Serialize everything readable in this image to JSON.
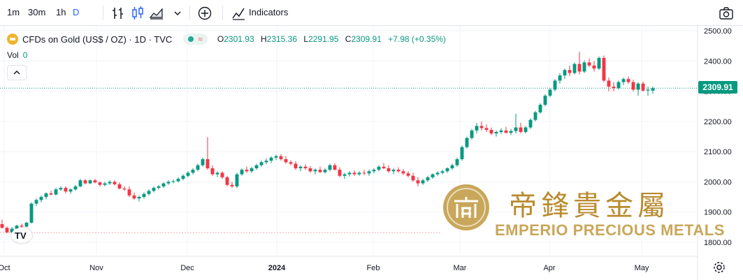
{
  "toolbar": {
    "timeframes": [
      "1m",
      "30m",
      "1h",
      "D"
    ],
    "active_timeframe": "D",
    "indicators_label": "Indicators",
    "icons": [
      "bar-style-icon",
      "candle-style-icon",
      "area-style-icon",
      "chevron-down-icon",
      "add-compare-icon",
      "indicators-icon",
      "camera-icon"
    ]
  },
  "legend": {
    "symbol_title": "CFDs on Gold (US$ / OZ) · 1D · TVC",
    "open_label": "O",
    "open": "2301.93",
    "high_label": "H",
    "high": "2315.36",
    "low_label": "L",
    "low": "2291.95",
    "close_label": "C",
    "close": "2309.91",
    "change": "+7.98 (+0.35%)"
  },
  "volume": {
    "label": "Vol",
    "value": "0"
  },
  "last_price_tag": "2309.91",
  "watermark": {
    "chinese": "帝鋒貴金屬",
    "english": "EMPERIO PRECIOUS METALS"
  },
  "colors": {
    "up": "#089981",
    "down": "#f23645",
    "grid": "#f0f3fa",
    "axis_text": "#131722",
    "watermark": "#c9a75a"
  },
  "chart_data": {
    "type": "candlestick",
    "title": "CFDs on Gold (US$ / OZ) · 1D · TVC",
    "ylim": [
      1760,
      2510
    ],
    "y_ticks": [
      "2500.00",
      "2400.00",
      "2300.00",
      "2200.00",
      "2100.00",
      "2000.00",
      "1900.00",
      "1800.00"
    ],
    "x_ticks": [
      "Oct",
      "Nov",
      "Dec",
      "2024",
      "Feb",
      "Mar",
      "Apr",
      "May"
    ],
    "last_price": 2309.91,
    "reference_line": 1832,
    "candles": [
      [
        1860,
        1875,
        1845,
        1848
      ],
      [
        1848,
        1852,
        1830,
        1833
      ],
      [
        1833,
        1850,
        1823,
        1845
      ],
      [
        1845,
        1858,
        1840,
        1855
      ],
      [
        1855,
        1862,
        1848,
        1852
      ],
      [
        1852,
        1868,
        1850,
        1865
      ],
      [
        1865,
        1932,
        1862,
        1928
      ],
      [
        1928,
        1945,
        1920,
        1940
      ],
      [
        1940,
        1955,
        1932,
        1950
      ],
      [
        1950,
        1965,
        1942,
        1962
      ],
      [
        1962,
        1970,
        1955,
        1958
      ],
      [
        1958,
        1980,
        1955,
        1975
      ],
      [
        1975,
        1985,
        1970,
        1980
      ],
      [
        1980,
        1985,
        1962,
        1968
      ],
      [
        1968,
        1978,
        1960,
        1975
      ],
      [
        1975,
        1990,
        1970,
        1985
      ],
      [
        1985,
        2010,
        1982,
        2005
      ],
      [
        2005,
        2010,
        1992,
        1995
      ],
      [
        1995,
        2008,
        1992,
        2005
      ],
      [
        2005,
        2010,
        1995,
        1998
      ],
      [
        1998,
        2002,
        1985,
        1990
      ],
      [
        1990,
        2000,
        1985,
        1995
      ],
      [
        1995,
        2005,
        1990,
        2000
      ],
      [
        2000,
        2005,
        1988,
        1992
      ],
      [
        1992,
        1998,
        1975,
        1978
      ],
      [
        1978,
        1985,
        1970,
        1975
      ],
      [
        1975,
        1985,
        1950,
        1955
      ],
      [
        1955,
        1965,
        1940,
        1945
      ],
      [
        1945,
        1955,
        1935,
        1950
      ],
      [
        1950,
        1965,
        1945,
        1960
      ],
      [
        1960,
        1975,
        1955,
        1970
      ],
      [
        1970,
        1985,
        1965,
        1980
      ],
      [
        1980,
        1990,
        1975,
        1985
      ],
      [
        1985,
        1998,
        1980,
        1995
      ],
      [
        1995,
        2005,
        1990,
        2000
      ],
      [
        2000,
        2008,
        1995,
        2002
      ],
      [
        2002,
        2015,
        1998,
        2010
      ],
      [
        2010,
        2025,
        2005,
        2020
      ],
      [
        2020,
        2035,
        2015,
        2030
      ],
      [
        2030,
        2045,
        2025,
        2040
      ],
      [
        2040,
        2060,
        2035,
        2055
      ],
      [
        2055,
        2080,
        2050,
        2075
      ],
      [
        2075,
        2148,
        2040,
        2045
      ],
      [
        2045,
        2055,
        2020,
        2025
      ],
      [
        2025,
        2035,
        2015,
        2030
      ],
      [
        2030,
        2035,
        2010,
        2015
      ],
      [
        2015,
        2020,
        1985,
        1990
      ],
      [
        1990,
        2000,
        1980,
        1985
      ],
      [
        1985,
        2030,
        1980,
        2025
      ],
      [
        2025,
        2045,
        2020,
        2040
      ],
      [
        2040,
        2050,
        2030,
        2035
      ],
      [
        2035,
        2050,
        2030,
        2045
      ],
      [
        2045,
        2060,
        2040,
        2055
      ],
      [
        2055,
        2070,
        2050,
        2065
      ],
      [
        2065,
        2078,
        2058,
        2070
      ],
      [
        2070,
        2085,
        2062,
        2080
      ],
      [
        2080,
        2090,
        2072,
        2085
      ],
      [
        2085,
        2092,
        2070,
        2075
      ],
      [
        2075,
        2085,
        2060,
        2065
      ],
      [
        2065,
        2072,
        2055,
        2060
      ],
      [
        2060,
        2068,
        2040,
        2045
      ],
      [
        2045,
        2055,
        2035,
        2050
      ],
      [
        2050,
        2058,
        2040,
        2045
      ],
      [
        2045,
        2052,
        2030,
        2035
      ],
      [
        2035,
        2045,
        2025,
        2040
      ],
      [
        2040,
        2050,
        2030,
        2032
      ],
      [
        2032,
        2045,
        2028,
        2040
      ],
      [
        2040,
        2060,
        2035,
        2055
      ],
      [
        2055,
        2062,
        2038,
        2040
      ],
      [
        2040,
        2048,
        2015,
        2020
      ],
      [
        2020,
        2030,
        2010,
        2025
      ],
      [
        2025,
        2035,
        2018,
        2030
      ],
      [
        2030,
        2038,
        2020,
        2025
      ],
      [
        2025,
        2035,
        2020,
        2030
      ],
      [
        2030,
        2040,
        2022,
        2028
      ],
      [
        2028,
        2040,
        2020,
        2035
      ],
      [
        2035,
        2045,
        2028,
        2040
      ],
      [
        2040,
        2055,
        2035,
        2050
      ],
      [
        2050,
        2062,
        2042,
        2045
      ],
      [
        2045,
        2055,
        2030,
        2035
      ],
      [
        2035,
        2045,
        2025,
        2040
      ],
      [
        2040,
        2048,
        2030,
        2035
      ],
      [
        2035,
        2042,
        2022,
        2028
      ],
      [
        2028,
        2035,
        2015,
        2020
      ],
      [
        2020,
        2030,
        2000,
        2005
      ],
      [
        2005,
        2015,
        1985,
        1995
      ],
      [
        1995,
        2010,
        1990,
        2005
      ],
      [
        2005,
        2020,
        2000,
        2015
      ],
      [
        2015,
        2028,
        2010,
        2025
      ],
      [
        2025,
        2035,
        2020,
        2030
      ],
      [
        2030,
        2040,
        2025,
        2035
      ],
      [
        2035,
        2048,
        2030,
        2045
      ],
      [
        2045,
        2060,
        2040,
        2055
      ],
      [
        2055,
        2080,
        2050,
        2075
      ],
      [
        2075,
        2120,
        2070,
        2115
      ],
      [
        2115,
        2150,
        2110,
        2145
      ],
      [
        2145,
        2175,
        2140,
        2170
      ],
      [
        2170,
        2195,
        2160,
        2185
      ],
      [
        2185,
        2200,
        2170,
        2178
      ],
      [
        2178,
        2190,
        2165,
        2172
      ],
      [
        2172,
        2180,
        2155,
        2160
      ],
      [
        2160,
        2170,
        2150,
        2165
      ],
      [
        2165,
        2178,
        2158,
        2170
      ],
      [
        2170,
        2182,
        2160,
        2162
      ],
      [
        2162,
        2175,
        2155,
        2168
      ],
      [
        2168,
        2225,
        2160,
        2180
      ],
      [
        2180,
        2195,
        2160,
        2165
      ],
      [
        2165,
        2185,
        2160,
        2180
      ],
      [
        2180,
        2210,
        2175,
        2205
      ],
      [
        2205,
        2235,
        2200,
        2230
      ],
      [
        2230,
        2260,
        2225,
        2255
      ],
      [
        2255,
        2290,
        2250,
        2285
      ],
      [
        2285,
        2310,
        2280,
        2305
      ],
      [
        2305,
        2340,
        2300,
        2335
      ],
      [
        2335,
        2360,
        2325,
        2352
      ],
      [
        2352,
        2375,
        2340,
        2370
      ],
      [
        2370,
        2385,
        2350,
        2360
      ],
      [
        2360,
        2395,
        2355,
        2390
      ],
      [
        2390,
        2430,
        2355,
        2365
      ],
      [
        2365,
        2402,
        2360,
        2395
      ],
      [
        2395,
        2408,
        2380,
        2385
      ],
      [
        2385,
        2400,
        2365,
        2375
      ],
      [
        2375,
        2415,
        2370,
        2410
      ],
      [
        2410,
        2418,
        2330,
        2335
      ],
      [
        2335,
        2345,
        2300,
        2315
      ],
      [
        2315,
        2330,
        2300,
        2310
      ],
      [
        2310,
        2335,
        2305,
        2330
      ],
      [
        2330,
        2345,
        2320,
        2340
      ],
      [
        2340,
        2348,
        2325,
        2330
      ],
      [
        2330,
        2338,
        2300,
        2305
      ],
      [
        2305,
        2330,
        2285,
        2325
      ],
      [
        2325,
        2332,
        2298,
        2302
      ],
      [
        2302,
        2315,
        2285,
        2305
      ],
      [
        2301.93,
        2315.36,
        2291.95,
        2309.91
      ]
    ]
  }
}
